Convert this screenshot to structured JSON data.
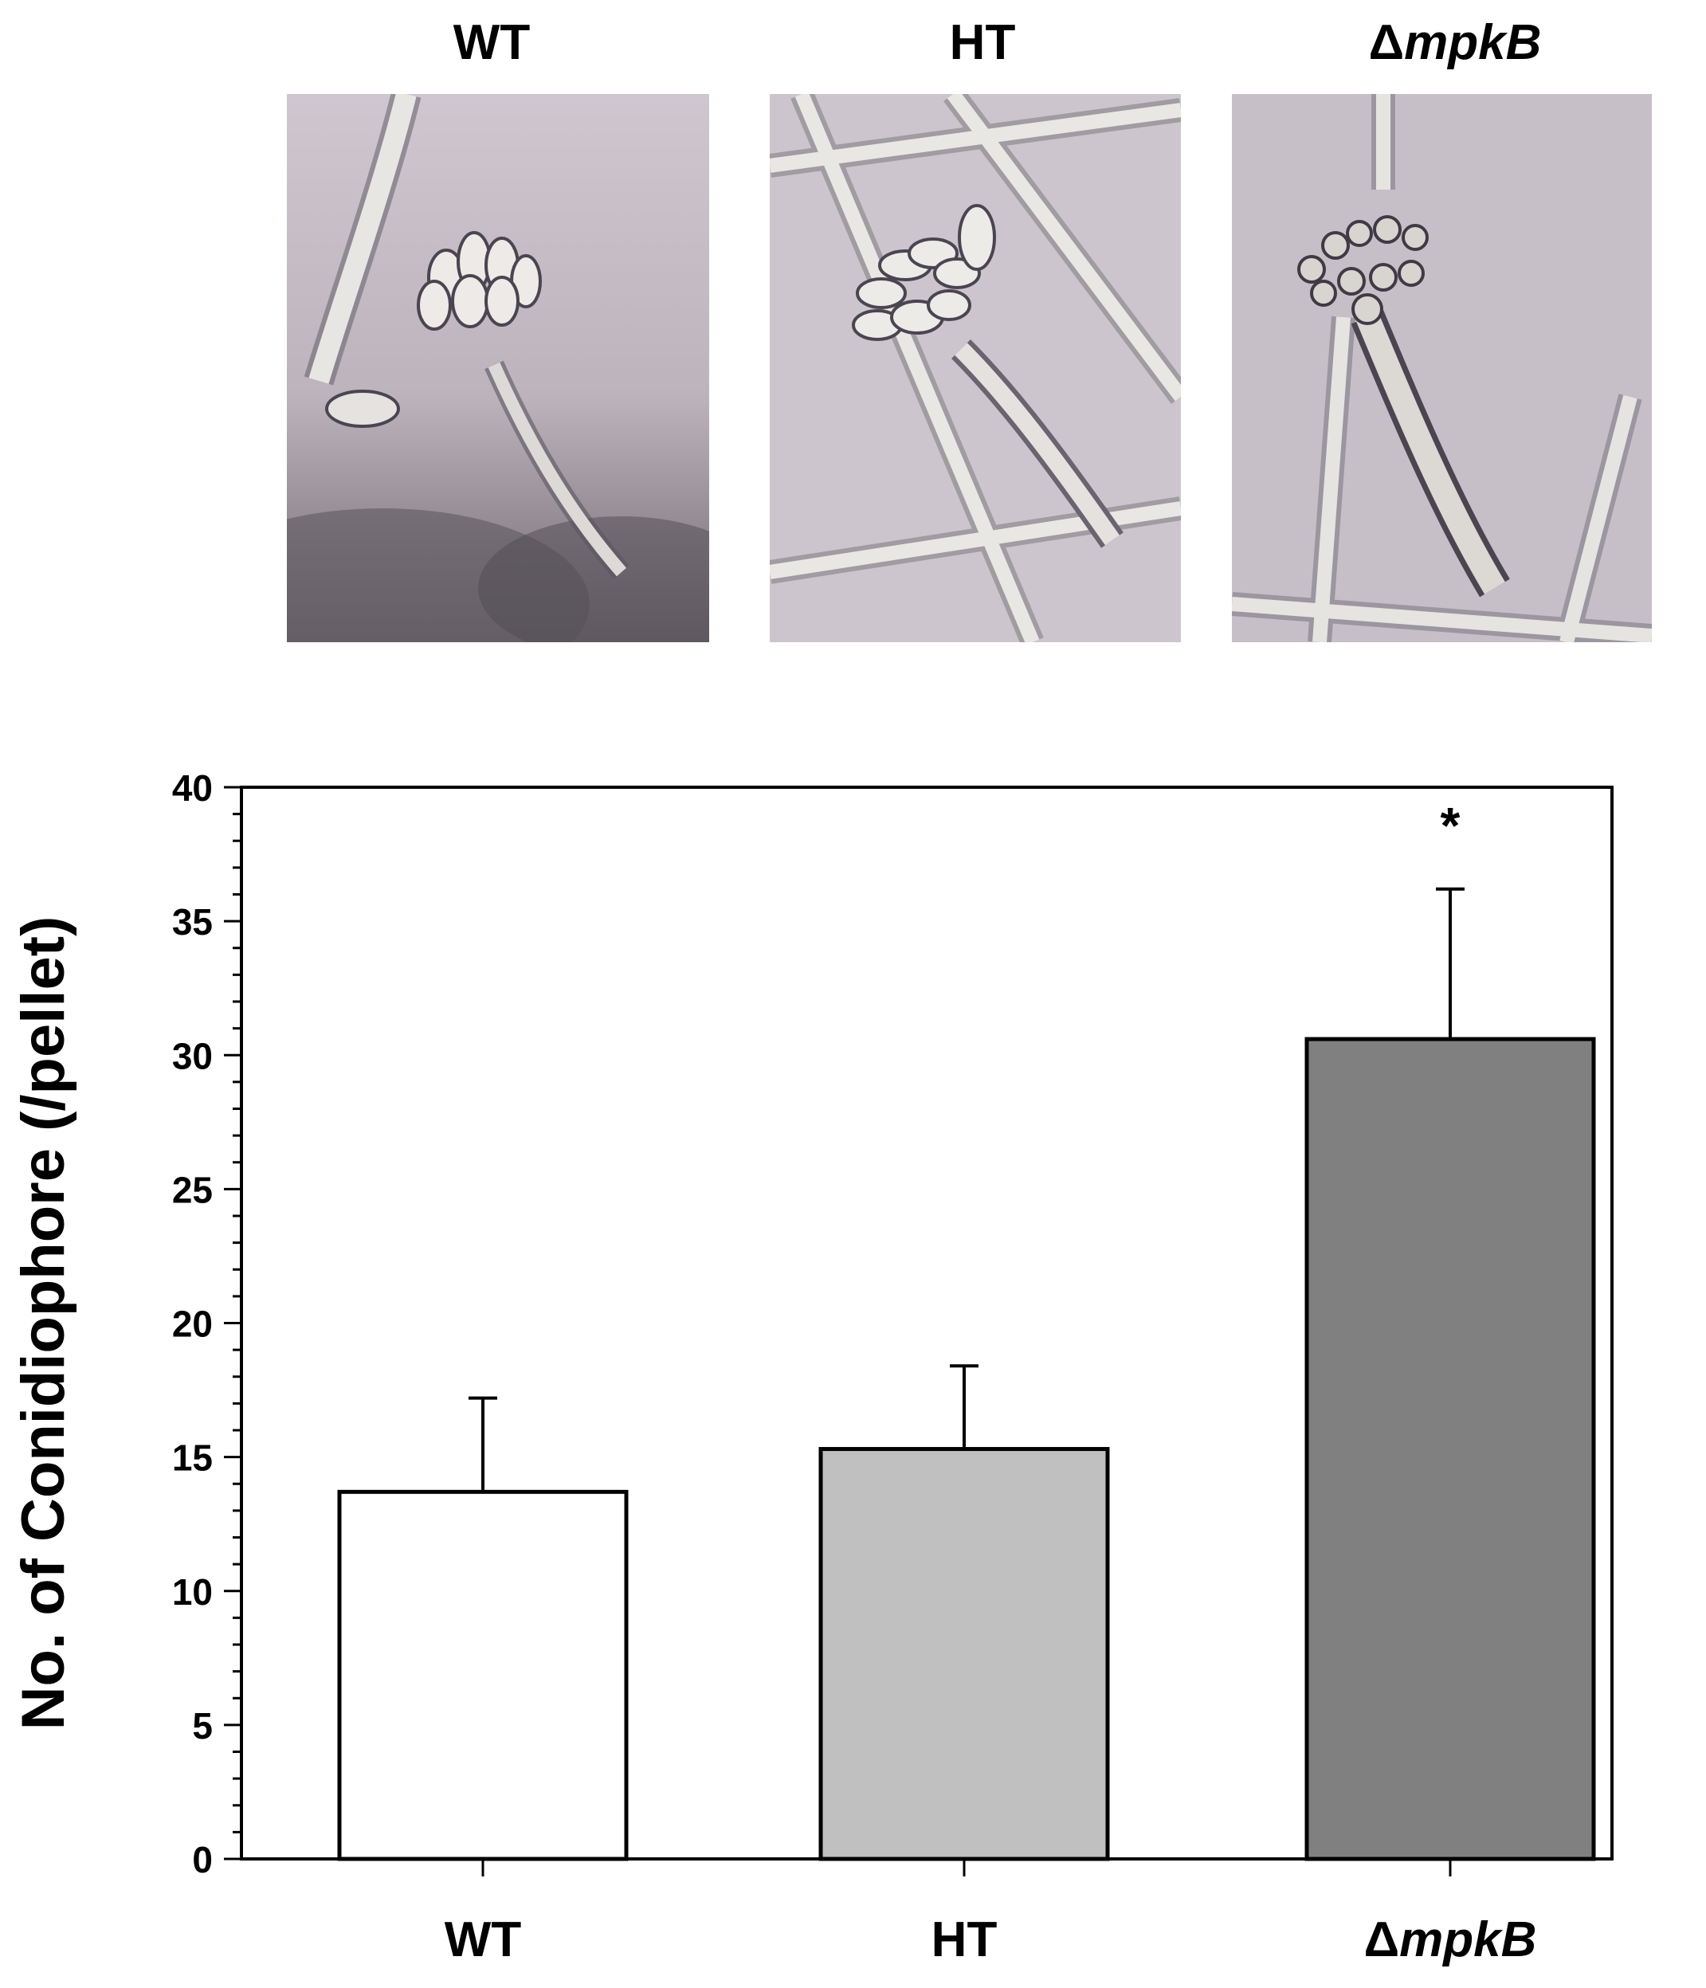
{
  "panels": [
    {
      "label_prefix": "",
      "label_italic": "WT",
      "label_plain": "WT",
      "image": "micrograph-wt-conidiophore"
    },
    {
      "label_prefix": "",
      "label_italic": "",
      "label_plain": "HT",
      "image": "micrograph-ht-conidiophore"
    },
    {
      "label_prefix": "Δ",
      "label_italic": "mpkB",
      "label_plain": "",
      "image": "micrograph-delta-mpkb-conidiophore"
    }
  ],
  "colors": {
    "photo_bg": "#c9bfc6",
    "hypha": "#e8e6e2",
    "hypha_edge": "#5a5560",
    "bar_wt": "#ffffff",
    "bar_ht": "#c0c0c0",
    "bar_mpkb": "#808080"
  },
  "chart_data": {
    "type": "bar",
    "categories": [
      "WT",
      "HT",
      "ΔmpkB"
    ],
    "category_labels": [
      {
        "prefix": "",
        "italic": "",
        "plain": "WT"
      },
      {
        "prefix": "",
        "italic": "",
        "plain": "HT"
      },
      {
        "prefix": "Δ",
        "italic": "mpkB",
        "plain": ""
      }
    ],
    "values": [
      13.7,
      15.3,
      30.6
    ],
    "errors": [
      3.5,
      3.1,
      5.6
    ],
    "fills": [
      "#ffffff",
      "#c0c0c0",
      "#808080"
    ],
    "annotations": [
      "",
      "",
      "*"
    ],
    "ylabel": "No. of Conidiophore (/pellet)",
    "ylim": [
      0,
      40
    ],
    "yticks": [
      0,
      5,
      10,
      15,
      20,
      25,
      30,
      35,
      40
    ],
    "grid": false
  }
}
